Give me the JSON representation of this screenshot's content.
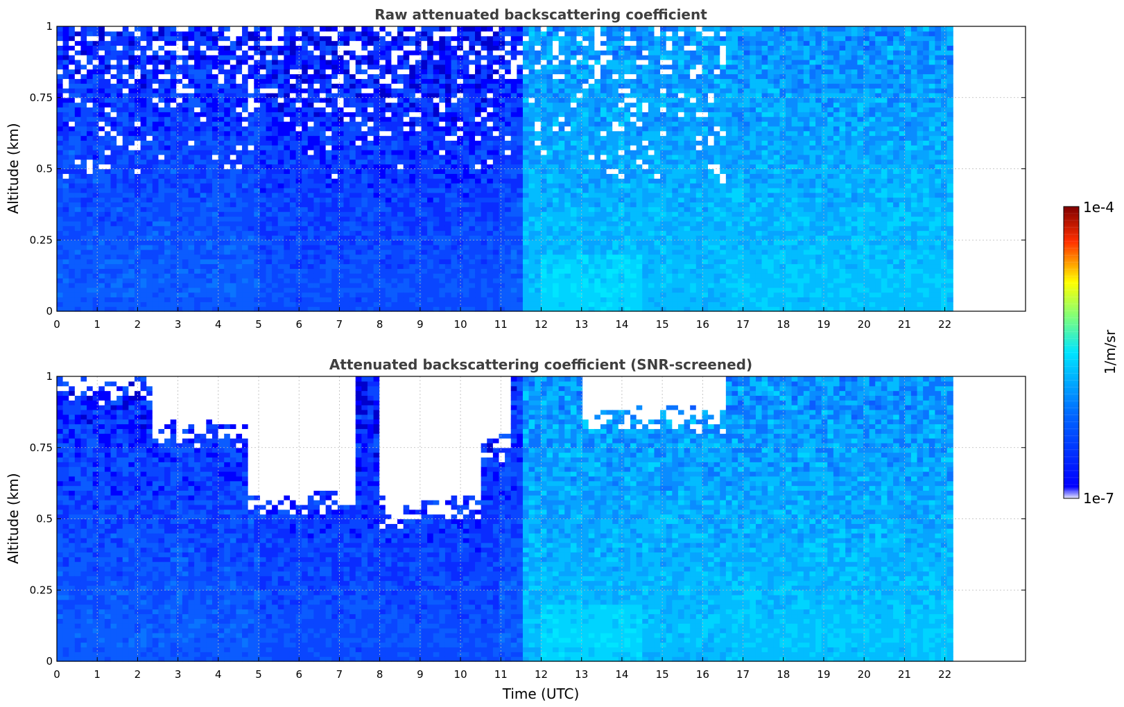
{
  "chart_data": [
    {
      "type": "heatmap",
      "title": "Raw attenuated backscattering coefficient",
      "xlabel": "",
      "ylabel": "Altitude (km)",
      "x_ticks": [
        "0",
        "1",
        "2",
        "3",
        "4",
        "5",
        "6",
        "7",
        "8",
        "9",
        "10",
        "11",
        "12",
        "13",
        "14",
        "15",
        "16",
        "17",
        "18",
        "19",
        "20",
        "21",
        "22"
      ],
      "y_ticks": [
        "0",
        "0.25",
        "0.5",
        "0.75",
        "1"
      ],
      "xlim": [
        0,
        24
      ],
      "ylim": [
        0,
        1
      ],
      "data_x_range": [
        0,
        22.2
      ],
      "grid": true,
      "screened": false
    },
    {
      "type": "heatmap",
      "title": "Attenuated backscattering coefficient (SNR-screened)",
      "xlabel": "Time (UTC)",
      "ylabel": "Altitude (km)",
      "x_ticks": [
        "0",
        "1",
        "2",
        "3",
        "4",
        "5",
        "6",
        "7",
        "8",
        "9",
        "10",
        "11",
        "12",
        "13",
        "14",
        "15",
        "16",
        "17",
        "18",
        "19",
        "20",
        "21",
        "22"
      ],
      "y_ticks": [
        "0",
        "0.25",
        "0.5",
        "0.75",
        "1"
      ],
      "xlim": [
        0,
        24
      ],
      "ylim": [
        0,
        1
      ],
      "data_x_range": [
        0,
        22.2
      ],
      "grid": true,
      "screened": true
    }
  ],
  "colorbar": {
    "label": "1/m/sr",
    "max_label": "1e-4",
    "min_label": "1e-7",
    "scale": "log",
    "colors": [
      "#e8e8ff",
      "#0000ff",
      "#00e5ff",
      "#ffff00",
      "#ff0000",
      "#800000"
    ]
  }
}
